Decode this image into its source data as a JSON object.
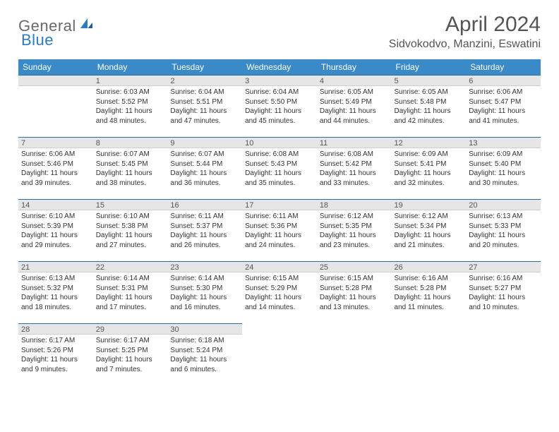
{
  "brand": {
    "part1": "General",
    "part2": "Blue"
  },
  "title": "April 2024",
  "location": "Sidvokodvo, Manzini, Eswatini",
  "colors": {
    "header_bg": "#3a8ac8",
    "header_text": "#ffffff",
    "daynum_bg": "#e6e6e6",
    "daynum_border_top": "#2e6fa0",
    "text": "#333333",
    "title_color": "#555555",
    "logo_gray": "#6a6a6a",
    "logo_blue": "#2e7bbf"
  },
  "weekdays": [
    "Sunday",
    "Monday",
    "Tuesday",
    "Wednesday",
    "Thursday",
    "Friday",
    "Saturday"
  ],
  "weeks": [
    [
      null,
      {
        "n": "1",
        "sr": "6:03 AM",
        "ss": "5:52 PM",
        "dl": "11 hours and 48 minutes."
      },
      {
        "n": "2",
        "sr": "6:04 AM",
        "ss": "5:51 PM",
        "dl": "11 hours and 47 minutes."
      },
      {
        "n": "3",
        "sr": "6:04 AM",
        "ss": "5:50 PM",
        "dl": "11 hours and 45 minutes."
      },
      {
        "n": "4",
        "sr": "6:05 AM",
        "ss": "5:49 PM",
        "dl": "11 hours and 44 minutes."
      },
      {
        "n": "5",
        "sr": "6:05 AM",
        "ss": "5:48 PM",
        "dl": "11 hours and 42 minutes."
      },
      {
        "n": "6",
        "sr": "6:06 AM",
        "ss": "5:47 PM",
        "dl": "11 hours and 41 minutes."
      }
    ],
    [
      {
        "n": "7",
        "sr": "6:06 AM",
        "ss": "5:46 PM",
        "dl": "11 hours and 39 minutes."
      },
      {
        "n": "8",
        "sr": "6:07 AM",
        "ss": "5:45 PM",
        "dl": "11 hours and 38 minutes."
      },
      {
        "n": "9",
        "sr": "6:07 AM",
        "ss": "5:44 PM",
        "dl": "11 hours and 36 minutes."
      },
      {
        "n": "10",
        "sr": "6:08 AM",
        "ss": "5:43 PM",
        "dl": "11 hours and 35 minutes."
      },
      {
        "n": "11",
        "sr": "6:08 AM",
        "ss": "5:42 PM",
        "dl": "11 hours and 33 minutes."
      },
      {
        "n": "12",
        "sr": "6:09 AM",
        "ss": "5:41 PM",
        "dl": "11 hours and 32 minutes."
      },
      {
        "n": "13",
        "sr": "6:09 AM",
        "ss": "5:40 PM",
        "dl": "11 hours and 30 minutes."
      }
    ],
    [
      {
        "n": "14",
        "sr": "6:10 AM",
        "ss": "5:39 PM",
        "dl": "11 hours and 29 minutes."
      },
      {
        "n": "15",
        "sr": "6:10 AM",
        "ss": "5:38 PM",
        "dl": "11 hours and 27 minutes."
      },
      {
        "n": "16",
        "sr": "6:11 AM",
        "ss": "5:37 PM",
        "dl": "11 hours and 26 minutes."
      },
      {
        "n": "17",
        "sr": "6:11 AM",
        "ss": "5:36 PM",
        "dl": "11 hours and 24 minutes."
      },
      {
        "n": "18",
        "sr": "6:12 AM",
        "ss": "5:35 PM",
        "dl": "11 hours and 23 minutes."
      },
      {
        "n": "19",
        "sr": "6:12 AM",
        "ss": "5:34 PM",
        "dl": "11 hours and 21 minutes."
      },
      {
        "n": "20",
        "sr": "6:13 AM",
        "ss": "5:33 PM",
        "dl": "11 hours and 20 minutes."
      }
    ],
    [
      {
        "n": "21",
        "sr": "6:13 AM",
        "ss": "5:32 PM",
        "dl": "11 hours and 18 minutes."
      },
      {
        "n": "22",
        "sr": "6:14 AM",
        "ss": "5:31 PM",
        "dl": "11 hours and 17 minutes."
      },
      {
        "n": "23",
        "sr": "6:14 AM",
        "ss": "5:30 PM",
        "dl": "11 hours and 16 minutes."
      },
      {
        "n": "24",
        "sr": "6:15 AM",
        "ss": "5:29 PM",
        "dl": "11 hours and 14 minutes."
      },
      {
        "n": "25",
        "sr": "6:15 AM",
        "ss": "5:28 PM",
        "dl": "11 hours and 13 minutes."
      },
      {
        "n": "26",
        "sr": "6:16 AM",
        "ss": "5:28 PM",
        "dl": "11 hours and 11 minutes."
      },
      {
        "n": "27",
        "sr": "6:16 AM",
        "ss": "5:27 PM",
        "dl": "11 hours and 10 minutes."
      }
    ],
    [
      {
        "n": "28",
        "sr": "6:17 AM",
        "ss": "5:26 PM",
        "dl": "11 hours and 9 minutes."
      },
      {
        "n": "29",
        "sr": "6:17 AM",
        "ss": "5:25 PM",
        "dl": "11 hours and 7 minutes."
      },
      {
        "n": "30",
        "sr": "6:18 AM",
        "ss": "5:24 PM",
        "dl": "11 hours and 6 minutes."
      },
      null,
      null,
      null,
      null
    ]
  ],
  "labels": {
    "sunrise": "Sunrise:",
    "sunset": "Sunset:",
    "daylight": "Daylight:"
  }
}
